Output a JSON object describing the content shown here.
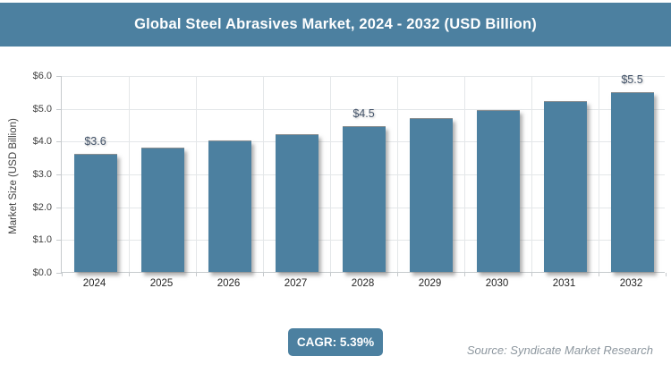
{
  "header": {
    "title": "Global Steel Abrasives Market, 2024 - 2032 (USD Billion)"
  },
  "footer": {
    "cagr_label": "CAGR: 5.39%",
    "source": "Source: Syndicate Market Research"
  },
  "colors": {
    "accent": "#4c80a0",
    "bar": "#4c80a0",
    "data_label": "#44546a",
    "grid": "#e4e7e9",
    "axis": "#c6cacd",
    "source_text": "#8d979f"
  },
  "chart_data": {
    "type": "bar",
    "title": "Global Steel Abrasives Market, 2024 - 2032 (USD Billion)",
    "categories": [
      "2024",
      "2025",
      "2026",
      "2027",
      "2028",
      "2029",
      "2030",
      "2031",
      "2032"
    ],
    "values": [
      3.6,
      3.79,
      4.0,
      4.21,
      4.45,
      4.68,
      4.93,
      5.2,
      5.48
    ],
    "bar_labels": [
      "$3.6",
      null,
      null,
      null,
      "$4.5",
      null,
      null,
      null,
      "$5.5"
    ],
    "xlabel": "",
    "ylabel": "Market Size (USD Billion)",
    "ylim": [
      0,
      6
    ],
    "ytick_labels_top_to_bottom": [
      "$6.0",
      "$5.0",
      "$4.0",
      "$3.0",
      "$2.0",
      "$1.0",
      "$0.0"
    ],
    "grid": true,
    "legend": false
  }
}
